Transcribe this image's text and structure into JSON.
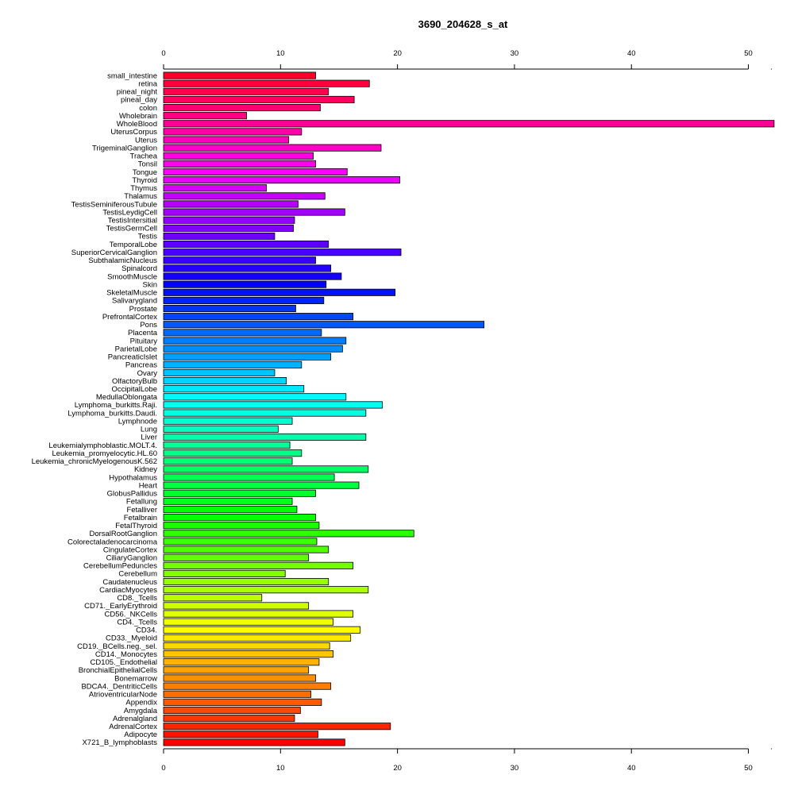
{
  "chart_data": {
    "type": "bar",
    "orientation": "horizontal",
    "title": "3690_204628_s_at",
    "xlabel": "",
    "ylabel": "",
    "xlim": [
      0,
      52
    ],
    "xticks": [
      "0",
      "10",
      "20",
      "30",
      "40",
      "50"
    ],
    "axis_positions": [
      "top",
      "bottom"
    ],
    "grid": false,
    "legend": "none",
    "colormap": "rainbow (red → magenta → blue → cyan → green → yellow → orange → red)",
    "categories": [
      "small_intestine",
      "retina",
      "pineal_night",
      "pineal_day",
      "colon",
      "Wholebrain",
      "WholeBlood",
      "UterusCorpus",
      "Uterus",
      "TrigeminalGanglion",
      "Trachea",
      "Tonsil",
      "Tongue",
      "Thyroid",
      "Thymus",
      "Thalamus",
      "TestisSeminiferousTubule",
      "TestisLeydigCell",
      "TestisIntersitial",
      "TestisGermCell",
      "Testis",
      "TemporalLobe",
      "SuperiorCervicalGanglion",
      "SubthalamicNucleus",
      "Spinalcord",
      "SmoothMuscle",
      "Skin",
      "SkeletalMuscle",
      "Salivarygland",
      "Prostate",
      "PrefrontalCortex",
      "Pons",
      "Placenta",
      "Pituitary",
      "ParietalLobe",
      "PancreaticIslet",
      "Pancreas",
      "Ovary",
      "OlfactoryBulb",
      "OccipitalLobe",
      "MedullaOblongata",
      "Lymphoma_burkitts.Raji.",
      "Lymphoma_burkitts.Daudi.",
      "Lymphnode",
      "Lung",
      "Liver",
      "Leukemialymphoblastic.MOLT.4.",
      "Leukemia_promyelocytic.HL.60",
      "Leukemia_chronicMyelogenousK.562",
      "Kidney",
      "Hypothalamus",
      "Heart",
      "GlobusPallidus",
      "Fetallung",
      "Fetalliver",
      "Fetalbrain",
      "FetalThyroid",
      "DorsalRootGanglion",
      "Colorectaladenocarcinoma",
      "CingulateCortex",
      "CiliaryGanglion",
      "CerebellumPeduncles",
      "Cerebellum",
      "Caudatenucleus",
      "CardiacMyocytes",
      "CD8._Tcells",
      "CD71._EarlyErythroid",
      "CD56._NKCells",
      "CD4._Tcells",
      "CD34.",
      "CD33._Myeloid",
      "CD19._BCells.neg._sel.",
      "CD14._Monocytes",
      "CD105._Endothelial",
      "BronchialEpithelialCells",
      "Bonemarrow",
      "BDCA4._DentriticCells",
      "AtrioventricularNode",
      "Appendix",
      "Amygdala",
      "Adrenalgland",
      "AdrenalCortex",
      "Adipocyte",
      "X721_B_lymphoblasts"
    ],
    "values": [
      13.0,
      17.6,
      14.1,
      16.3,
      13.4,
      7.1,
      52.2,
      11.8,
      10.7,
      18.6,
      12.8,
      13.0,
      15.7,
      20.2,
      8.8,
      13.8,
      11.5,
      15.5,
      11.2,
      11.1,
      9.5,
      14.1,
      20.3,
      13.0,
      14.3,
      15.2,
      13.9,
      19.8,
      13.7,
      11.3,
      16.2,
      27.4,
      13.5,
      15.6,
      15.3,
      14.3,
      11.8,
      9.5,
      10.5,
      12.0,
      15.6,
      18.7,
      17.3,
      11.0,
      9.8,
      17.3,
      10.8,
      11.8,
      11.0,
      17.5,
      14.6,
      16.7,
      13.0,
      11.0,
      11.4,
      13.0,
      13.3,
      21.4,
      13.1,
      14.1,
      12.4,
      16.2,
      10.4,
      14.1,
      17.5,
      8.4,
      12.4,
      16.2,
      14.5,
      16.8,
      16.0,
      14.2,
      14.5,
      13.3,
      12.4,
      13.0,
      14.3,
      12.6,
      13.5,
      11.7,
      11.2,
      19.4,
      13.2,
      15.5
    ]
  }
}
